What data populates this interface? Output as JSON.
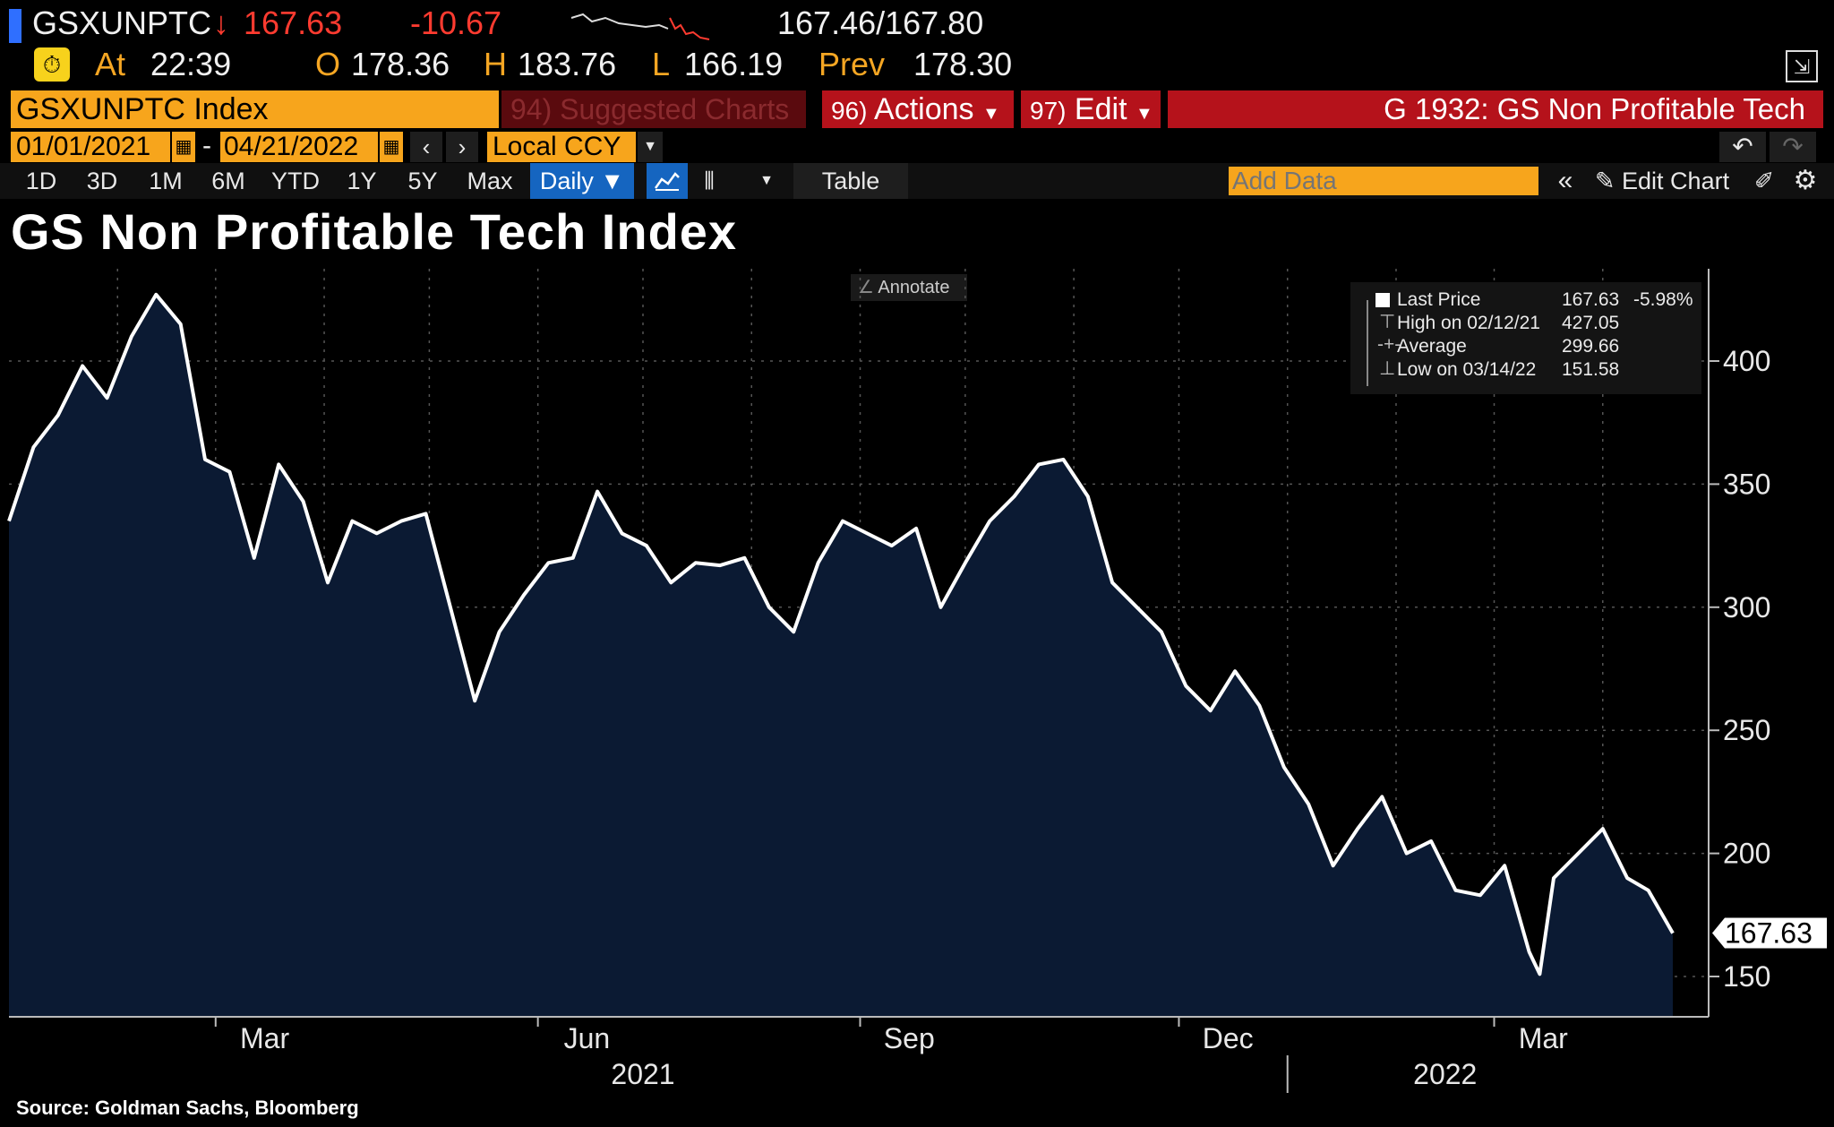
{
  "header": {
    "ticker": "GSXUNPTC",
    "arrow": "↓",
    "last": "167.63",
    "change": "-10.67",
    "bid_ask": "167.46/167.80",
    "at_label": "At",
    "time": "22:39",
    "open_label": "O",
    "open": "178.36",
    "high_label": "H",
    "high": "183.76",
    "low_label": "L",
    "low": "166.19",
    "prev_label": "Prev",
    "prev": "178.30"
  },
  "toolbar": {
    "security": "GSXUNPTC Index",
    "suggested_num": "94)",
    "suggested": "Suggested Charts",
    "actions_num": "96)",
    "actions": "Actions",
    "edit_num": "97)",
    "edit": "Edit",
    "function_title": "G 1932: GS Non Profitable Tech",
    "start_date": "01/01/2021",
    "date_sep": "-",
    "end_date": "04/21/2022",
    "currency": "Local CCY",
    "periods": [
      "1D",
      "3D",
      "1M",
      "6M",
      "YTD",
      "1Y",
      "5Y",
      "Max"
    ],
    "frequency": "Daily",
    "table": "Table",
    "add_data_placeholder": "Add Data",
    "edit_chart": "Edit Chart"
  },
  "annotate": "Annotate",
  "source": "Source: Goldman Sachs, Bloomberg",
  "legend": {
    "last_label": "Last Price",
    "last_value": "167.63",
    "last_pct": "-5.98%",
    "high_label": "High on 02/12/21",
    "high_value": "427.05",
    "avg_label": "Average",
    "avg_value": "299.66",
    "low_label": "Low on 03/14/22",
    "low_value": "151.58"
  },
  "colors": {
    "accent_orange": "#f7a51c",
    "header_red": "#b5121b",
    "area_fill": "#0b1a33",
    "line": "#ffffff",
    "selected_blue": "#1565c0"
  },
  "chart_data": {
    "type": "area",
    "title": "GS Non Profitable Tech Index",
    "xlabel": "",
    "ylabel": "",
    "ylim": [
      140,
      430
    ],
    "y_ticks": [
      150,
      200,
      250,
      300,
      350,
      400
    ],
    "x_tick_labels": [
      "Mar",
      "Jun",
      "Sep",
      "Dec",
      "Mar"
    ],
    "year_labels": [
      "2021",
      "2022"
    ],
    "last_value_label": "167.63",
    "x_range": [
      "2021-01-01",
      "2022-04-21"
    ],
    "series": [
      {
        "name": "Last Price",
        "dates": [
          "2021-01-01",
          "2021-01-08",
          "2021-01-15",
          "2021-01-22",
          "2021-01-29",
          "2021-02-05",
          "2021-02-12",
          "2021-02-19",
          "2021-02-26",
          "2021-03-05",
          "2021-03-12",
          "2021-03-19",
          "2021-03-26",
          "2021-04-02",
          "2021-04-09",
          "2021-04-16",
          "2021-04-23",
          "2021-04-30",
          "2021-05-07",
          "2021-05-14",
          "2021-05-21",
          "2021-05-28",
          "2021-06-04",
          "2021-06-11",
          "2021-06-18",
          "2021-06-25",
          "2021-07-02",
          "2021-07-09",
          "2021-07-16",
          "2021-07-23",
          "2021-07-30",
          "2021-08-06",
          "2021-08-13",
          "2021-08-20",
          "2021-08-27",
          "2021-09-03",
          "2021-09-10",
          "2021-09-17",
          "2021-09-24",
          "2021-10-01",
          "2021-10-08",
          "2021-10-15",
          "2021-10-22",
          "2021-10-29",
          "2021-11-05",
          "2021-11-12",
          "2021-11-19",
          "2021-11-26",
          "2021-12-03",
          "2021-12-10",
          "2021-12-17",
          "2021-12-24",
          "2021-12-31",
          "2022-01-07",
          "2022-01-14",
          "2022-01-21",
          "2022-01-28",
          "2022-02-04",
          "2022-02-11",
          "2022-02-18",
          "2022-02-25",
          "2022-03-04",
          "2022-03-11",
          "2022-03-14",
          "2022-03-18",
          "2022-03-25",
          "2022-04-01",
          "2022-04-08",
          "2022-04-14",
          "2022-04-21"
        ],
        "values": [
          335,
          365,
          378,
          398,
          385,
          410,
          427,
          415,
          360,
          355,
          320,
          358,
          343,
          310,
          335,
          330,
          335,
          338,
          300,
          262,
          290,
          305,
          318,
          320,
          347,
          330,
          325,
          310,
          318,
          317,
          320,
          300,
          290,
          318,
          335,
          330,
          325,
          332,
          300,
          318,
          335,
          345,
          358,
          360,
          345,
          310,
          300,
          290,
          268,
          258,
          274,
          260,
          235,
          220,
          195,
          210,
          223,
          200,
          205,
          185,
          183,
          195,
          160,
          151,
          190,
          200,
          210,
          190,
          185,
          167.63
        ]
      }
    ]
  }
}
